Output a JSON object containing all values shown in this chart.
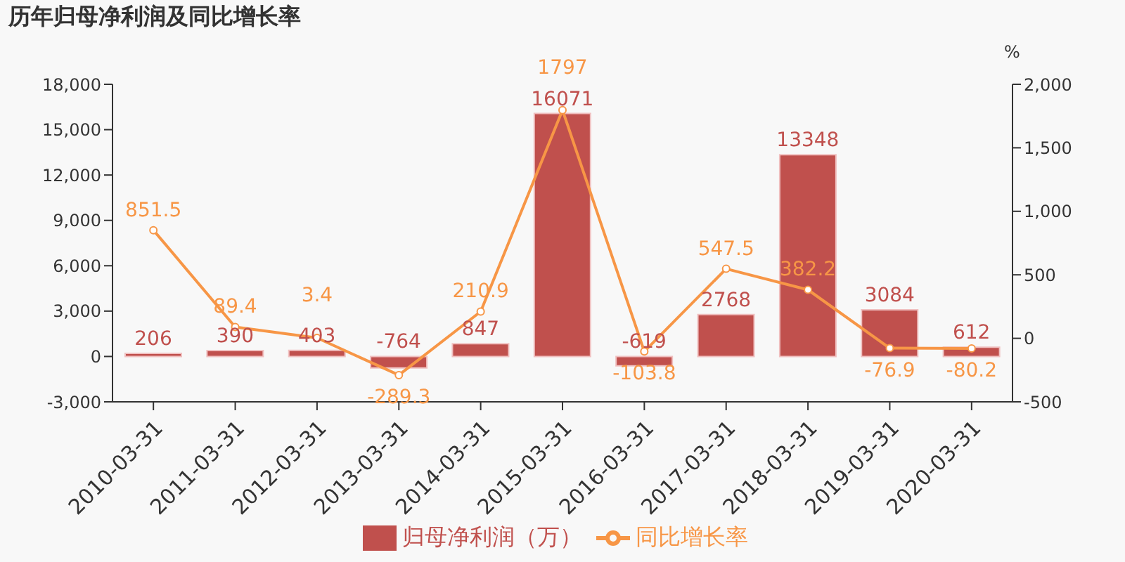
{
  "chart_data": {
    "type": "bar",
    "title": "历年归母净利润及同比增长率",
    "y2label": "%",
    "categories": [
      "2010-03-31",
      "2011-03-31",
      "2012-03-31",
      "2013-03-31",
      "2014-03-31",
      "2015-03-31",
      "2016-03-31",
      "2017-03-31",
      "2018-03-31",
      "2019-03-31",
      "2020-03-31"
    ],
    "series": [
      {
        "name": "归母净利润（万）",
        "color": "#c0504d",
        "values": [
          206,
          390,
          403,
          -764,
          847,
          16071,
          -619,
          2768,
          13348,
          3084,
          612
        ]
      },
      {
        "name": "同比增长率",
        "type": "line",
        "axis": "y2",
        "color": "#f79646",
        "values": [
          851.5,
          89.4,
          3.4,
          -289.3,
          210.9,
          1797,
          -103.8,
          547.5,
          382.2,
          -76.9,
          -80.2
        ]
      }
    ],
    "ylim": [
      -3000,
      18000
    ],
    "yticks": [
      {
        "value": -3000,
        "label": "-3,000"
      },
      0,
      {
        "value": 3000,
        "label": "3,000"
      },
      {
        "value": 6000,
        "label": "6,000"
      },
      {
        "value": 9000,
        "label": "9,000"
      },
      {
        "value": 12000,
        "label": "12,000"
      },
      {
        "value": 15000,
        "label": "15,000"
      },
      {
        "value": 18000,
        "label": "18,000"
      }
    ],
    "y2lim": [
      -500,
      2000
    ],
    "y2ticks": [
      {
        "value": -500,
        "label": "-500"
      },
      0,
      500,
      {
        "value": 1000,
        "label": "1,000"
      },
      {
        "value": 1500,
        "label": "1,500"
      },
      {
        "value": 2000,
        "label": "2,000"
      }
    ],
    "data_labels": true,
    "grid": false,
    "legend": "bottom",
    "marker": "circle"
  }
}
